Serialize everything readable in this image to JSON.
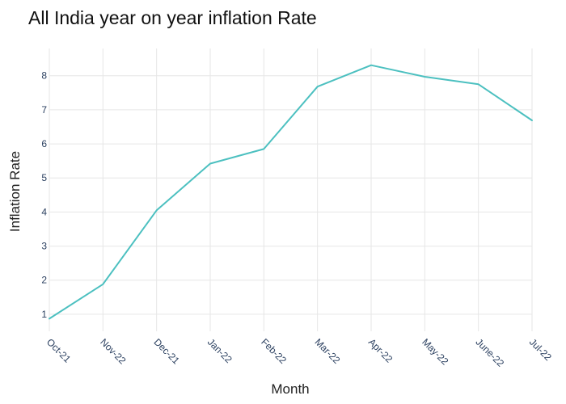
{
  "chart_data": {
    "type": "line",
    "title": "All India year on year inflation Rate",
    "xlabel": "Month",
    "ylabel": "Inflation Rate",
    "categories": [
      "Oct-21",
      "Nov-22",
      "Dec-21",
      "Jan-22",
      "Feb-22",
      "Mar-22",
      "Apr-22",
      "May-22",
      "June-22",
      "Jul-22"
    ],
    "series": [
      {
        "values": [
          0.87,
          1.88,
          4.05,
          5.42,
          5.85,
          7.68,
          8.31,
          7.97,
          7.75,
          6.69
        ]
      }
    ],
    "ylim": [
      0.5,
      8.8
    ],
    "yticks": [
      1,
      2,
      3,
      4,
      5,
      6,
      7,
      8
    ],
    "grid": true,
    "line_color": "#4cc0c0"
  }
}
